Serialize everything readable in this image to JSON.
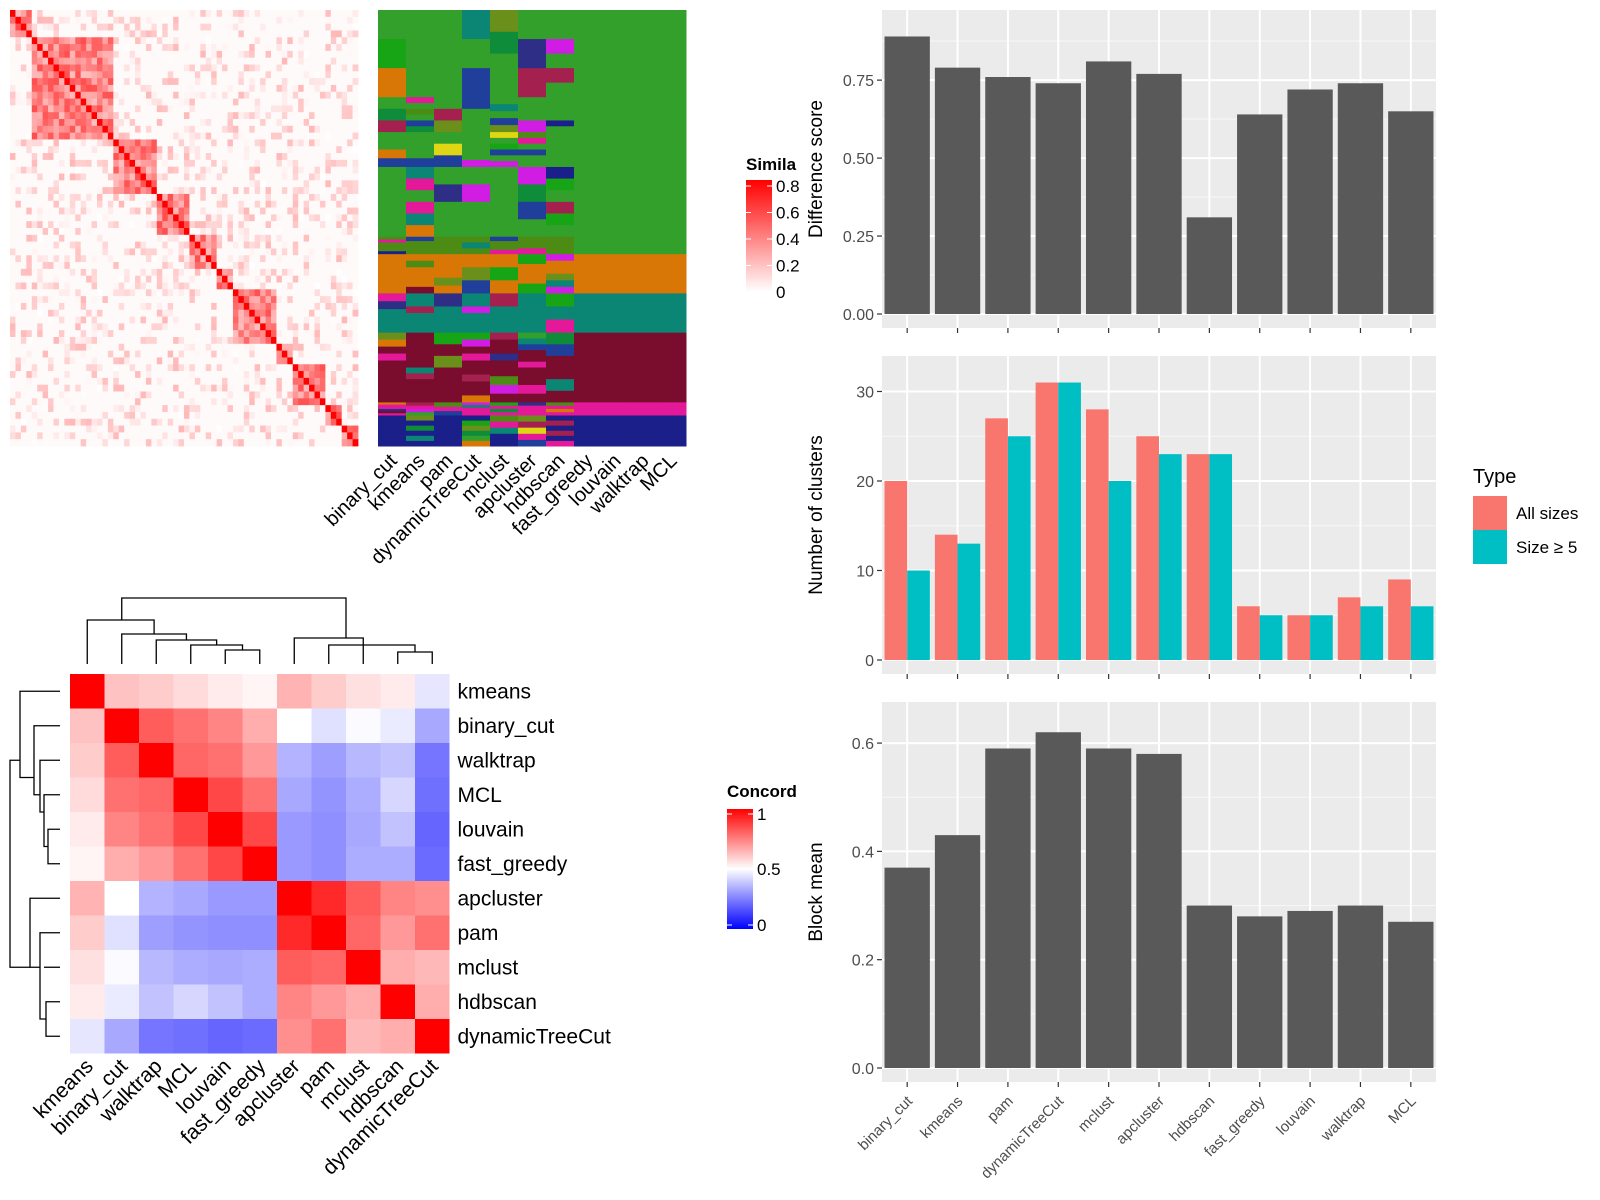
{
  "figure": {
    "panel_a": {
      "legend_title": "Simila",
      "legend_ticks": [
        "0.8",
        "0.6",
        "0.4",
        "0.2",
        "0"
      ],
      "methods": [
        "binary_cut",
        "kmeans",
        "pam",
        "dynamicTreeCut",
        "mclust",
        "apcluster",
        "hdbscan",
        "fast_greedy",
        "louvain",
        "walktrap",
        "MCL"
      ]
    },
    "panel_b": {
      "legend_title": "Concord",
      "legend_ticks": [
        "1",
        "0.5",
        "0"
      ]
    }
  },
  "chart_data": [
    {
      "type": "heatmap",
      "id": "similarity-heatmap",
      "legend_title": "Simila",
      "colorscale": [
        "#ffffff",
        "#ff0000"
      ],
      "value_range": [
        0,
        0.8
      ]
    },
    {
      "type": "heatmap",
      "id": "concordance-heatmap",
      "legend_title": "Concord",
      "colorscale": [
        "#0000ff",
        "#ffffff",
        "#ff0000"
      ],
      "value_range": [
        0,
        1
      ],
      "labels": [
        "kmeans",
        "binary_cut",
        "walktrap",
        "MCL",
        "louvain",
        "fast_greedy",
        "apcluster",
        "pam",
        "mclust",
        "hdbscan",
        "dynamicTreeCut"
      ],
      "values": [
        [
          1.0,
          0.62,
          0.6,
          0.57,
          0.54,
          0.52,
          0.65,
          0.6,
          0.56,
          0.54,
          0.45
        ],
        [
          0.62,
          1.0,
          0.82,
          0.78,
          0.74,
          0.66,
          0.5,
          0.44,
          0.49,
          0.46,
          0.33
        ],
        [
          0.6,
          0.82,
          1.0,
          0.8,
          0.78,
          0.7,
          0.35,
          0.31,
          0.36,
          0.38,
          0.23
        ],
        [
          0.57,
          0.78,
          0.8,
          1.0,
          0.86,
          0.78,
          0.33,
          0.29,
          0.34,
          0.42,
          0.22
        ],
        [
          0.54,
          0.74,
          0.78,
          0.86,
          1.0,
          0.86,
          0.3,
          0.28,
          0.33,
          0.38,
          0.2
        ],
        [
          0.52,
          0.66,
          0.7,
          0.78,
          0.86,
          1.0,
          0.3,
          0.28,
          0.34,
          0.34,
          0.21
        ],
        [
          0.65,
          0.5,
          0.35,
          0.33,
          0.3,
          0.3,
          1.0,
          0.92,
          0.82,
          0.74,
          0.72
        ],
        [
          0.6,
          0.44,
          0.31,
          0.29,
          0.28,
          0.28,
          0.92,
          1.0,
          0.8,
          0.7,
          0.78
        ],
        [
          0.56,
          0.49,
          0.36,
          0.34,
          0.33,
          0.34,
          0.82,
          0.8,
          1.0,
          0.66,
          0.64
        ],
        [
          0.54,
          0.46,
          0.38,
          0.42,
          0.38,
          0.34,
          0.74,
          0.7,
          0.66,
          1.0,
          0.66
        ],
        [
          0.45,
          0.33,
          0.23,
          0.22,
          0.2,
          0.21,
          0.72,
          0.78,
          0.64,
          0.66,
          1.0
        ]
      ]
    },
    {
      "type": "bar",
      "id": "difference-score",
      "categories": [
        "binary_cut",
        "kmeans",
        "pam",
        "dynamicTreeCut",
        "mclust",
        "apcluster",
        "hdbscan",
        "fast_greedy",
        "louvain",
        "walktrap",
        "MCL"
      ],
      "values": [
        0.89,
        0.79,
        0.76,
        0.74,
        0.81,
        0.77,
        0.31,
        0.64,
        0.72,
        0.74,
        0.65
      ],
      "ylabel": "Difference score",
      "yticks": [
        "0.00",
        "0.25",
        "0.50",
        "0.75"
      ],
      "ylim": [
        0,
        0.93
      ],
      "color": "#595959"
    },
    {
      "type": "bar",
      "id": "number-of-clusters",
      "categories": [
        "binary_cut",
        "kmeans",
        "pam",
        "dynamicTreeCut",
        "mclust",
        "apcluster",
        "hdbscan",
        "fast_greedy",
        "louvain",
        "walktrap",
        "MCL"
      ],
      "series": [
        {
          "name": "All sizes",
          "color": "#F8766D",
          "values": [
            20,
            14,
            27,
            31,
            28,
            25,
            23,
            6,
            5,
            7,
            9
          ]
        },
        {
          "name": "Size ≥ 5",
          "color": "#00BFC4",
          "values": [
            10,
            13,
            25,
            31,
            20,
            23,
            23,
            5,
            5,
            6,
            6
          ]
        }
      ],
      "ylabel": "Number of clusters",
      "yticks": [
        "0",
        "10",
        "20",
        "30"
      ],
      "ylim": [
        0,
        32.4
      ],
      "legend_title": "Type",
      "legend_position": "right"
    },
    {
      "type": "bar",
      "id": "block-mean",
      "categories": [
        "binary_cut",
        "kmeans",
        "pam",
        "dynamicTreeCut",
        "mclust",
        "apcluster",
        "hdbscan",
        "fast_greedy",
        "louvain",
        "walktrap",
        "MCL"
      ],
      "values": [
        0.37,
        0.43,
        0.59,
        0.62,
        0.59,
        0.58,
        0.3,
        0.28,
        0.29,
        0.3,
        0.27
      ],
      "ylabel": "Block mean",
      "yticks": [
        "0.0",
        "0.2",
        "0.4",
        "0.6"
      ],
      "ylim": [
        0,
        0.65
      ],
      "color": "#595959"
    }
  ]
}
